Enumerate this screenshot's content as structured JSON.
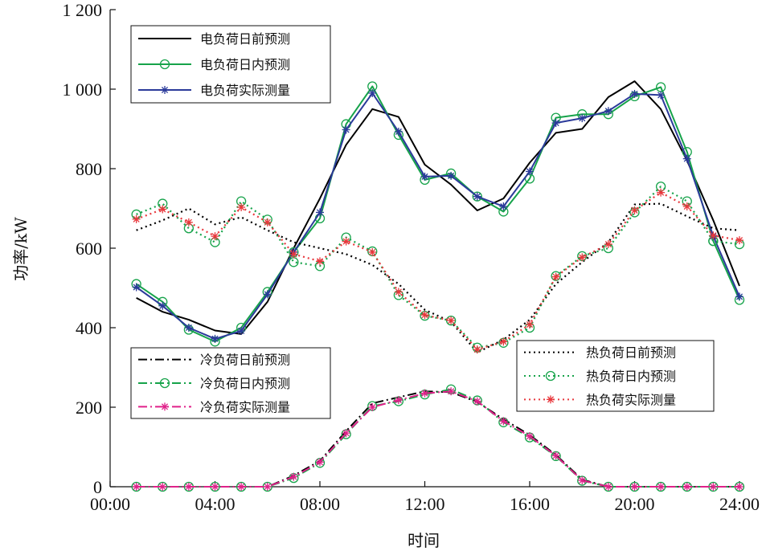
{
  "chart_data": {
    "type": "line",
    "xlabel": "时间",
    "ylabel": "功率/kW",
    "xlim": [
      0,
      24
    ],
    "ylim": [
      0,
      1200
    ],
    "grid": false,
    "x_ticks": [
      0,
      4,
      8,
      12,
      16,
      20,
      24
    ],
    "x_tick_labels": [
      "00:00",
      "04:00",
      "08:00",
      "12:00",
      "16:00",
      "20:00",
      "24:00"
    ],
    "y_ticks": [
      0,
      200,
      400,
      600,
      800,
      1000,
      1200
    ],
    "y_tick_labels": [
      "0",
      "200",
      "400",
      "600",
      "800",
      "1 000",
      "1 200"
    ],
    "x": [
      1,
      2,
      3,
      4,
      5,
      6,
      7,
      8,
      9,
      10,
      11,
      12,
      13,
      14,
      15,
      16,
      17,
      18,
      19,
      20,
      21,
      22,
      23,
      24
    ],
    "legends": [
      {
        "position": "top-left",
        "series": [
          0,
          1,
          2
        ]
      },
      {
        "position": "bottom-left",
        "series": [
          3,
          4,
          5
        ]
      },
      {
        "position": "bottom-right",
        "series": [
          6,
          7,
          8
        ]
      }
    ],
    "series": [
      {
        "name": "电负荷日前预测",
        "color": "#000000",
        "style": "solid",
        "marker": "none",
        "values": [
          475,
          440,
          420,
          393,
          384,
          465,
          600,
          725,
          860,
          950,
          930,
          810,
          760,
          695,
          725,
          815,
          890,
          900,
          980,
          1020,
          950,
          820,
          670,
          505
        ]
      },
      {
        "name": "电负荷日内预测",
        "color": "#16a34a",
        "style": "solid",
        "marker": "circle",
        "values": [
          510,
          465,
          395,
          365,
          400,
          490,
          590,
          675,
          912,
          1007,
          885,
          772,
          788,
          730,
          692,
          775,
          928,
          937,
          937,
          982,
          1005,
          842,
          618,
          470
        ]
      },
      {
        "name": "电负荷实际测量",
        "color": "#2b3a9a",
        "style": "solid",
        "marker": "asterisk",
        "values": [
          502,
          455,
          400,
          372,
          392,
          484,
          590,
          690,
          898,
          990,
          893,
          780,
          782,
          730,
          705,
          793,
          915,
          927,
          945,
          988,
          985,
          825,
          630,
          478
        ]
      },
      {
        "name": "冷负荷日前预测",
        "color": "#000000",
        "style": "dashdot",
        "marker": "none",
        "values": [
          0,
          0,
          0,
          0,
          0,
          0,
          28,
          65,
          140,
          210,
          225,
          240,
          238,
          213,
          170,
          130,
          80,
          18,
          0,
          0,
          0,
          0,
          0,
          0
        ]
      },
      {
        "name": "冷负荷日内预测",
        "color": "#16a34a",
        "style": "dashdot",
        "marker": "circle",
        "values": [
          0,
          0,
          0,
          0,
          0,
          0,
          22,
          60,
          132,
          203,
          215,
          232,
          245,
          217,
          162,
          124,
          77,
          15,
          0,
          0,
          0,
          0,
          0,
          0
        ]
      },
      {
        "name": "冷负荷实际测量",
        "color": "#e0218a",
        "style": "dashdot",
        "marker": "asterisk",
        "values": [
          0,
          0,
          0,
          0,
          0,
          0,
          25,
          62,
          135,
          200,
          218,
          235,
          240,
          215,
          165,
          127,
          78,
          16,
          0,
          0,
          0,
          0,
          0,
          0
        ]
      },
      {
        "name": "热负荷日前预测",
        "color": "#000000",
        "style": "dotted",
        "marker": "none",
        "values": [
          645,
          670,
          700,
          660,
          678,
          645,
          615,
          600,
          585,
          558,
          510,
          445,
          415,
          338,
          370,
          420,
          510,
          565,
          615,
          710,
          712,
          680,
          650,
          645
        ]
      },
      {
        "name": "热负荷日内预测",
        "color": "#16a34a",
        "style": "dotted",
        "marker": "circle",
        "values": [
          685,
          712,
          650,
          615,
          718,
          672,
          565,
          555,
          627,
          592,
          482,
          430,
          418,
          350,
          362,
          400,
          530,
          580,
          600,
          690,
          755,
          718,
          618,
          610
        ]
      },
      {
        "name": "热负荷实际测量",
        "color": "#e8383d",
        "style": "dotted",
        "marker": "asterisk",
        "values": [
          673,
          698,
          665,
          630,
          703,
          665,
          585,
          567,
          617,
          590,
          490,
          432,
          418,
          345,
          365,
          408,
          528,
          577,
          610,
          695,
          740,
          705,
          632,
          620
        ]
      }
    ]
  }
}
